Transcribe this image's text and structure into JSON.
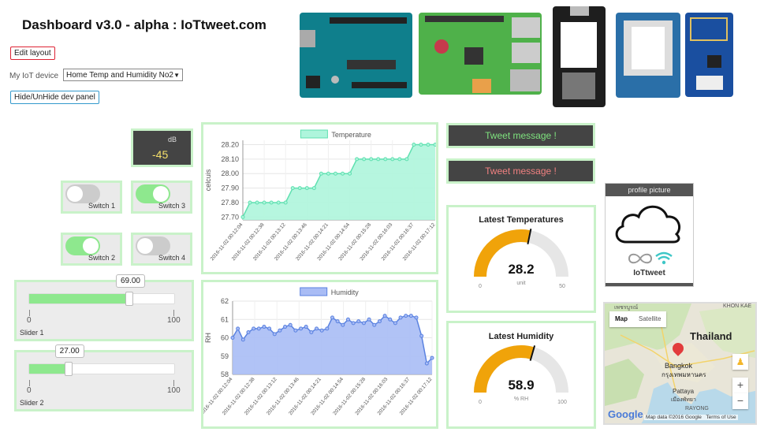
{
  "header": {
    "title": "Dashboard v3.0 - alpha : IoTtweet.com"
  },
  "controls": {
    "edit_label": "Edit layout",
    "device_label": "My IoT device",
    "device_selected": "Home Temp and Humidity No2",
    "hide_label": "Hide/UnHide dev panel"
  },
  "boards": [
    "arduino-uno",
    "raspberry-pi",
    "nodemcu-esp8266",
    "wemos-d1-mini",
    "esp-01"
  ],
  "db_widget": {
    "unit": "dB",
    "value": "-45"
  },
  "switches": [
    {
      "label": "Switch 1",
      "on": false
    },
    {
      "label": "Switch 3",
      "on": true
    },
    {
      "label": "Switch 2",
      "on": true
    },
    {
      "label": "Switch 4",
      "on": false
    }
  ],
  "sliders": [
    {
      "label": "Slider 1",
      "value": "69.00",
      "fraction": 0.69,
      "min": "0",
      "max": "100"
    },
    {
      "label": "Slider 2",
      "value": "27.00",
      "fraction": 0.27,
      "min": "0",
      "max": "100"
    }
  ],
  "chart_data": [
    {
      "type": "area",
      "series_name": "Temperature",
      "ylabel": "celcuis",
      "yticks": [
        "28.20",
        "28.10",
        "28.00",
        "27.90",
        "27.80",
        "27.70"
      ],
      "ylim": [
        27.68,
        28.23
      ],
      "xticks": [
        "2016-11-02 00:12:04",
        "2016-11-02 00:12:38",
        "2016-11-02 00:13:12",
        "2016-11-02 00:13:46",
        "2016-11-02 00:14:21",
        "2016-11-02 00:14:54",
        "2016-11-02 00:15:28",
        "2016-11-02 00:16:03",
        "2016-11-02 00:16:37",
        "2016-11-02 00:17:12"
      ],
      "values": [
        27.7,
        27.8,
        27.8,
        27.8,
        27.8,
        27.8,
        27.8,
        27.9,
        27.9,
        27.9,
        27.9,
        28.0,
        28.0,
        28.0,
        28.0,
        28.0,
        28.1,
        28.1,
        28.1,
        28.1,
        28.1,
        28.1,
        28.1,
        28.1,
        28.2,
        28.2,
        28.2,
        28.2
      ],
      "line_color": "#5fe0b0",
      "fill_color": "#aef5dc"
    },
    {
      "type": "area",
      "series_name": "Humidity",
      "ylabel": "RH",
      "yticks": [
        "62",
        "61",
        "60",
        "59",
        "58"
      ],
      "ylim": [
        58,
        62
      ],
      "xticks": [
        "2016-11-02 00:12:04",
        "2016-11-02 00:12:38",
        "2016-11-02 00:13:12",
        "2016-11-02 00:13:46",
        "2016-11-02 00:14:21",
        "2016-11-02 00:14:54",
        "2016-11-02 00:15:28",
        "2016-11-02 00:16:03",
        "2016-11-02 00:16:37",
        "2016-11-02 00:17:12"
      ],
      "values": [
        60.0,
        60.5,
        59.9,
        60.3,
        60.5,
        60.5,
        60.6,
        60.5,
        60.2,
        60.4,
        60.6,
        60.7,
        60.4,
        60.5,
        60.6,
        60.3,
        60.5,
        60.4,
        60.5,
        61.1,
        60.9,
        60.7,
        61.0,
        60.8,
        60.9,
        60.8,
        61.0,
        60.7,
        60.9,
        61.2,
        61.0,
        60.8,
        61.1,
        61.2,
        61.2,
        61.1,
        60.1,
        58.6,
        58.9
      ],
      "line_color": "#5a82e0",
      "fill_color": "#a9bcf5"
    }
  ],
  "tweets": [
    {
      "label": "Tweet message !",
      "color": "#7ee27e"
    },
    {
      "label": "Tweet message !",
      "color": "#f08080"
    }
  ],
  "gauges": [
    {
      "title": "Latest Temperatures",
      "value": "28.2",
      "fraction": 0.564,
      "min": "0",
      "max": "50",
      "unit": "unit",
      "color": "#f0a30a"
    },
    {
      "title": "Latest Humidity",
      "value": "58.9",
      "fraction": 0.589,
      "min": "0",
      "max": "100",
      "unit": "% RH",
      "color": "#f0a30a"
    }
  ],
  "profile": {
    "header": "profile picture",
    "name": "IoTtweet"
  },
  "map": {
    "type_map": "Map",
    "type_satellite": "Satellite",
    "country": "Thailand",
    "city": "Bangkok",
    "city_thai": "กรุงเทพมหานคร",
    "city2": "Pattaya",
    "city2_thai": "เมืองพัทยา",
    "rayong": "RAYONG",
    "khon_kaen": "KHON KAE",
    "top_left": "เพชรบูรณ์",
    "attribution": "Map data ©2016 Google",
    "terms": "Terms of Use",
    "google": "Google"
  }
}
